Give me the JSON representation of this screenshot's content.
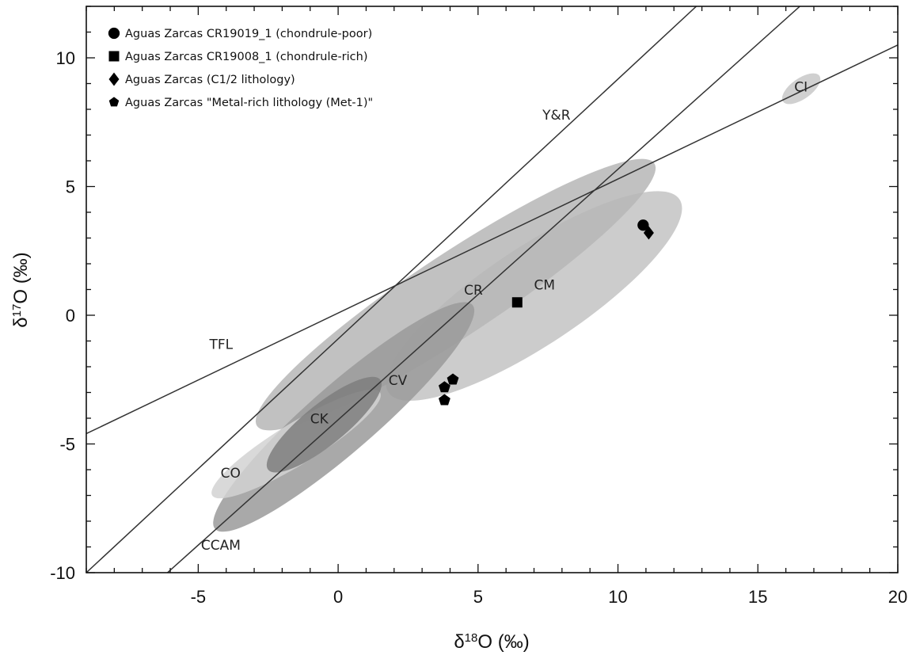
{
  "chart_data": {
    "type": "scatter",
    "title": "",
    "xlabel": "δ18O (‰)",
    "ylabel": "δ17O (‰)",
    "xlim": [
      -9,
      20
    ],
    "ylim": [
      -10,
      12
    ],
    "x_ticks": [
      -5,
      0,
      5,
      10,
      15,
      20
    ],
    "y_ticks": [
      -10,
      -5,
      0,
      5,
      10
    ],
    "x_tick_labels": [
      "-5",
      "0",
      "5",
      "10",
      "15",
      "20"
    ],
    "y_tick_labels": [
      "-10",
      "-5",
      "0",
      "5",
      "10"
    ],
    "grid": false,
    "legend_position": "top-left",
    "series": [
      {
        "name": "Aguas Zarcas CR19019_1 (chondrule-poor)",
        "marker": "circle",
        "points": [
          {
            "x": 10.9,
            "y": 3.5
          }
        ]
      },
      {
        "name": "Aguas Zarcas CR19008_1 (chondrule-rich)",
        "marker": "square",
        "points": [
          {
            "x": 6.4,
            "y": 0.5
          }
        ]
      },
      {
        "name": "Aguas Zarcas (C1/2 lithology)",
        "marker": "diamond",
        "points": [
          {
            "x": 11.1,
            "y": 3.2
          }
        ]
      },
      {
        "name": "Aguas Zarcas \"Metal-rich lithology (Met-1)\"",
        "marker": "pentagon",
        "points": [
          {
            "x": 4.1,
            "y": -2.5
          },
          {
            "x": 3.8,
            "y": -2.8
          },
          {
            "x": 3.8,
            "y": -3.3
          }
        ]
      }
    ],
    "reference_lines": [
      {
        "name": "TFL",
        "x": [
          -9,
          20
        ],
        "y": [
          -4.6,
          10.5
        ]
      },
      {
        "name": "Y&R",
        "x": [
          -9,
          12.8
        ],
        "y": [
          -10,
          12
        ]
      },
      {
        "name": "CCAM",
        "x": [
          -6.1,
          16.5
        ],
        "y": [
          -10,
          12
        ]
      }
    ],
    "regions": [
      {
        "name": "CI",
        "color": "#c8c8c8",
        "label_at": [
          16.3,
          8.7
        ],
        "from": [
          15.9,
          8.3
        ],
        "to": [
          17.2,
          9.3
        ],
        "width": 0.8
      },
      {
        "name": "CM",
        "color": "#c3c3c3",
        "label_at": [
          7.0,
          1.0
        ],
        "from": [
          1.8,
          -3.0
        ],
        "to": [
          12.2,
          4.5
        ],
        "width": 3.8
      },
      {
        "name": "CR",
        "color": "#b6b6b6",
        "label_at": [
          4.5,
          0.8
        ],
        "from": [
          -2.9,
          -4.3
        ],
        "to": [
          11.3,
          5.9
        ],
        "width": 3.2
      },
      {
        "name": "CV",
        "color": "#9a9a9a",
        "label_at": [
          1.8,
          -2.7
        ],
        "from": [
          -4.4,
          -8.3
        ],
        "to": [
          4.8,
          0.4
        ],
        "width": 2.6
      },
      {
        "name": "CO",
        "color": "#d2d2d2",
        "label_at": [
          -4.2,
          -6.3
        ],
        "from": [
          -4.5,
          -7.0
        ],
        "to": [
          1.5,
          -3.0
        ],
        "width": 1.6
      },
      {
        "name": "CK",
        "color": "#7e7e7e",
        "label_at": [
          -1.0,
          -4.2
        ],
        "from": [
          -2.5,
          -6.0
        ],
        "to": [
          1.5,
          -2.5
        ],
        "width": 1.6
      }
    ],
    "region_labels_extra": [
      "CCAM"
    ],
    "ccam_label_at": [
      -4.9,
      -9.1
    ]
  },
  "colors": {
    "line": "#333333",
    "marker": "#000000",
    "axis": "#111111"
  }
}
